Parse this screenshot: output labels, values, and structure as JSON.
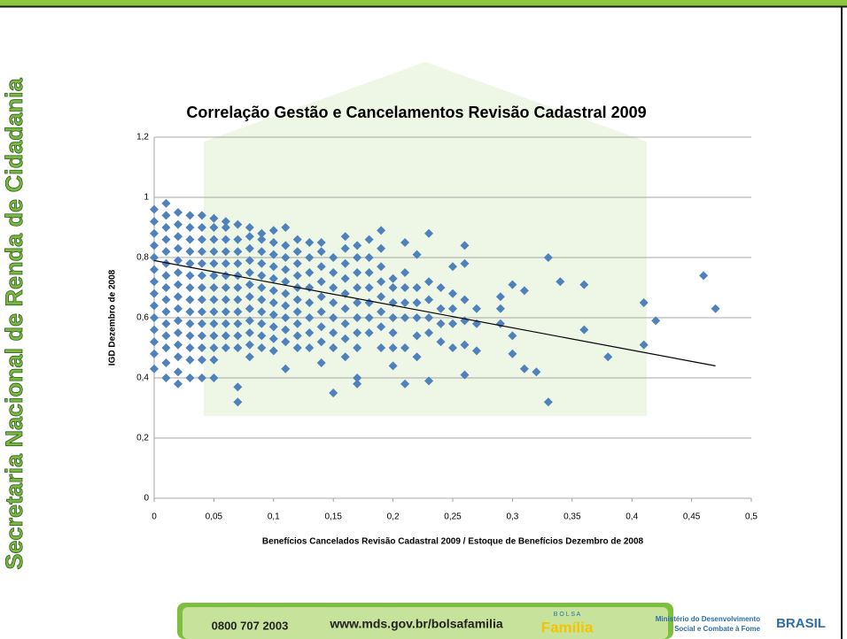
{
  "sidebar": "Secretaria Nacional de Renda de Cidadania",
  "footer": {
    "phone": "0800 707 2003",
    "url": "www.mds.gov.br/bolsafamilia",
    "logo_top": "B O L S A",
    "logo": "Família",
    "ministry_1": "Ministério do Desenvolvimento",
    "ministry_2": "Social e Combate à Fome",
    "brand": "BRASIL"
  },
  "chart_data": {
    "type": "scatter",
    "title": "Correlação Gestão e Cancelamentos Revisão Cadastral 2009",
    "x_label": "Benefícios Cancelados Revisão Cadastral 2009 / Estoque de Benefícios Dezembro de 2008",
    "y_label": "IGD Dezembro de 2008",
    "color": "#4f81bd",
    "xlim": [
      0,
      0.5
    ],
    "ylim": [
      0,
      1.2
    ],
    "xticks": [
      0,
      {
        "value": 0.05,
        "label": "0,05"
      },
      {
        "value": 0.1,
        "label": "0,1"
      },
      {
        "value": 0.15,
        "label": "0,15"
      },
      {
        "value": 0.2,
        "label": "0,2"
      },
      {
        "value": 0.25,
        "label": "0,25"
      },
      {
        "value": 0.3,
        "label": "0,3"
      },
      {
        "value": 0.35,
        "label": "0,35"
      },
      {
        "value": 0.4,
        "label": "0,4"
      },
      {
        "value": 0.45,
        "label": "0,45"
      },
      {
        "value": 0.5,
        "label": "0,5"
      }
    ],
    "yticks": [
      0,
      {
        "value": 0.2,
        "label": "0,2"
      },
      {
        "value": 0.4,
        "label": "0,4"
      },
      {
        "value": 0.6,
        "label": "0,6"
      },
      {
        "value": 0.8,
        "label": "0,8"
      },
      1,
      {
        "value": 1.2,
        "label": "1,2"
      }
    ],
    "grid": true,
    "trendline": {
      "x": [
        0,
        0.47
      ],
      "values": [
        0.79,
        0.44
      ],
      "color": "#000000"
    },
    "x": [
      0,
      0,
      0,
      0,
      0,
      0,
      0,
      0,
      0,
      0,
      0,
      0,
      0,
      0,
      0.01,
      0.01,
      0.01,
      0.01,
      0.01,
      0.01,
      0.01,
      0.01,
      0.01,
      0.01,
      0.01,
      0.01,
      0.01,
      0.01,
      0.01,
      0.02,
      0.02,
      0.02,
      0.02,
      0.02,
      0.02,
      0.02,
      0.02,
      0.02,
      0.02,
      0.02,
      0.02,
      0.02,
      0.02,
      0.02,
      0.03,
      0.03,
      0.03,
      0.03,
      0.03,
      0.03,
      0.03,
      0.03,
      0.03,
      0.03,
      0.03,
      0.03,
      0.03,
      0.03,
      0.04,
      0.04,
      0.04,
      0.04,
      0.04,
      0.04,
      0.04,
      0.04,
      0.04,
      0.04,
      0.04,
      0.04,
      0.04,
      0.04,
      0.05,
      0.05,
      0.05,
      0.05,
      0.05,
      0.05,
      0.05,
      0.05,
      0.05,
      0.05,
      0.05,
      0.05,
      0.05,
      0.05,
      0.06,
      0.06,
      0.06,
      0.06,
      0.06,
      0.06,
      0.06,
      0.06,
      0.06,
      0.06,
      0.06,
      0.06,
      0.07,
      0.07,
      0.07,
      0.07,
      0.07,
      0.07,
      0.07,
      0.07,
      0.07,
      0.07,
      0.07,
      0.07,
      0.07,
      0.08,
      0.08,
      0.08,
      0.08,
      0.08,
      0.08,
      0.08,
      0.08,
      0.08,
      0.08,
      0.08,
      0.08,
      0.09,
      0.09,
      0.09,
      0.09,
      0.09,
      0.09,
      0.09,
      0.09,
      0.09,
      0.09,
      0.09,
      0.1,
      0.1,
      0.1,
      0.1,
      0.1,
      0.1,
      0.1,
      0.1,
      0.1,
      0.1,
      0.1,
      0.11,
      0.11,
      0.11,
      0.11,
      0.11,
      0.11,
      0.11,
      0.11,
      0.11,
      0.11,
      0.11,
      0.12,
      0.12,
      0.12,
      0.12,
      0.12,
      0.12,
      0.12,
      0.12,
      0.12,
      0.12,
      0.13,
      0.13,
      0.13,
      0.13,
      0.13,
      0.13,
      0.13,
      0.13,
      0.14,
      0.14,
      0.14,
      0.14,
      0.14,
      0.14,
      0.14,
      0.14,
      0.14,
      0.15,
      0.15,
      0.15,
      0.15,
      0.15,
      0.15,
      0.15,
      0.15,
      0.16,
      0.16,
      0.16,
      0.16,
      0.16,
      0.16,
      0.16,
      0.16,
      0.16,
      0.17,
      0.17,
      0.17,
      0.17,
      0.17,
      0.17,
      0.17,
      0.17,
      0.17,
      0.17,
      0.18,
      0.18,
      0.18,
      0.18,
      0.18,
      0.18,
      0.18,
      0.19,
      0.19,
      0.19,
      0.19,
      0.19,
      0.19,
      0.19,
      0.19,
      0.2,
      0.2,
      0.2,
      0.2,
      0.2,
      0.2,
      0.2,
      0.21,
      0.21,
      0.21,
      0.21,
      0.21,
      0.21,
      0.21,
      0.22,
      0.22,
      0.22,
      0.22,
      0.22,
      0.22,
      0.23,
      0.23,
      0.23,
      0.23,
      0.23,
      0.23,
      0.24,
      0.24,
      0.24,
      0.24,
      0.25,
      0.25,
      0.25,
      0.25,
      0.25,
      0.26,
      0.26,
      0.26,
      0.26,
      0.26,
      0.26,
      0.27,
      0.27,
      0.27,
      0.29,
      0.29,
      0.29,
      0.3,
      0.3,
      0.3,
      0.31,
      0.31,
      0.32,
      0.33,
      0.33,
      0.34,
      0.36,
      0.36,
      0.38,
      0.41,
      0.41,
      0.42,
      0.46,
      0.47
    ],
    "values": [
      0.43,
      0.48,
      0.52,
      0.56,
      0.6,
      0.64,
      0.68,
      0.72,
      0.76,
      0.8,
      0.84,
      0.88,
      0.92,
      0.96,
      0.4,
      0.45,
      0.5,
      0.54,
      0.58,
      0.62,
      0.66,
      0.7,
      0.74,
      0.78,
      0.82,
      0.86,
      0.9,
      0.94,
      0.98,
      0.38,
      0.42,
      0.47,
      0.51,
      0.55,
      0.59,
      0.63,
      0.67,
      0.71,
      0.75,
      0.79,
      0.83,
      0.87,
      0.91,
      0.95,
      0.4,
      0.46,
      0.5,
      0.54,
      0.58,
      0.62,
      0.66,
      0.7,
      0.74,
      0.78,
      0.82,
      0.86,
      0.9,
      0.94,
      0.4,
      0.46,
      0.5,
      0.54,
      0.58,
      0.62,
      0.66,
      0.7,
      0.74,
      0.78,
      0.82,
      0.86,
      0.9,
      0.94,
      0.4,
      0.46,
      0.5,
      0.54,
      0.58,
      0.62,
      0.66,
      0.7,
      0.74,
      0.78,
      0.82,
      0.86,
      0.9,
      0.93,
      0.5,
      0.54,
      0.58,
      0.62,
      0.66,
      0.7,
      0.74,
      0.78,
      0.82,
      0.86,
      0.9,
      0.92,
      0.32,
      0.37,
      0.5,
      0.54,
      0.58,
      0.62,
      0.66,
      0.7,
      0.74,
      0.78,
      0.82,
      0.86,
      0.91,
      0.47,
      0.51,
      0.55,
      0.59,
      0.63,
      0.67,
      0.71,
      0.75,
      0.79,
      0.83,
      0.87,
      0.9,
      0.5,
      0.54,
      0.58,
      0.62,
      0.66,
      0.7,
      0.74,
      0.78,
      0.82,
      0.86,
      0.88,
      0.49,
      0.53,
      0.57,
      0.61,
      0.65,
      0.69,
      0.73,
      0.77,
      0.81,
      0.85,
      0.89,
      0.43,
      0.52,
      0.56,
      0.6,
      0.64,
      0.68,
      0.72,
      0.76,
      0.8,
      0.84,
      0.9,
      0.5,
      0.54,
      0.58,
      0.62,
      0.66,
      0.7,
      0.74,
      0.78,
      0.82,
      0.86,
      0.5,
      0.55,
      0.6,
      0.65,
      0.7,
      0.75,
      0.8,
      0.85,
      0.45,
      0.52,
      0.57,
      0.62,
      0.67,
      0.72,
      0.77,
      0.82,
      0.85,
      0.35,
      0.5,
      0.55,
      0.6,
      0.65,
      0.7,
      0.75,
      0.8,
      0.47,
      0.53,
      0.58,
      0.63,
      0.68,
      0.73,
      0.78,
      0.83,
      0.87,
      0.38,
      0.4,
      0.5,
      0.55,
      0.6,
      0.65,
      0.7,
      0.75,
      0.8,
      0.84,
      0.55,
      0.6,
      0.65,
      0.7,
      0.75,
      0.8,
      0.86,
      0.5,
      0.57,
      0.62,
      0.67,
      0.72,
      0.77,
      0.83,
      0.89,
      0.44,
      0.5,
      0.55,
      0.6,
      0.65,
      0.7,
      0.73,
      0.38,
      0.5,
      0.6,
      0.65,
      0.7,
      0.75,
      0.85,
      0.47,
      0.54,
      0.6,
      0.65,
      0.7,
      0.81,
      0.39,
      0.55,
      0.6,
      0.66,
      0.72,
      0.88,
      0.52,
      0.58,
      0.63,
      0.7,
      0.5,
      0.58,
      0.63,
      0.68,
      0.77,
      0.41,
      0.51,
      0.59,
      0.66,
      0.78,
      0.84,
      0.49,
      0.58,
      0.63,
      0.58,
      0.63,
      0.67,
      0.48,
      0.54,
      0.71,
      0.43,
      0.69,
      0.42,
      0.32,
      0.8,
      0.72,
      0.56,
      0.71,
      0.47,
      0.51,
      0.65,
      0.59,
      0.74,
      0.63
    ]
  }
}
